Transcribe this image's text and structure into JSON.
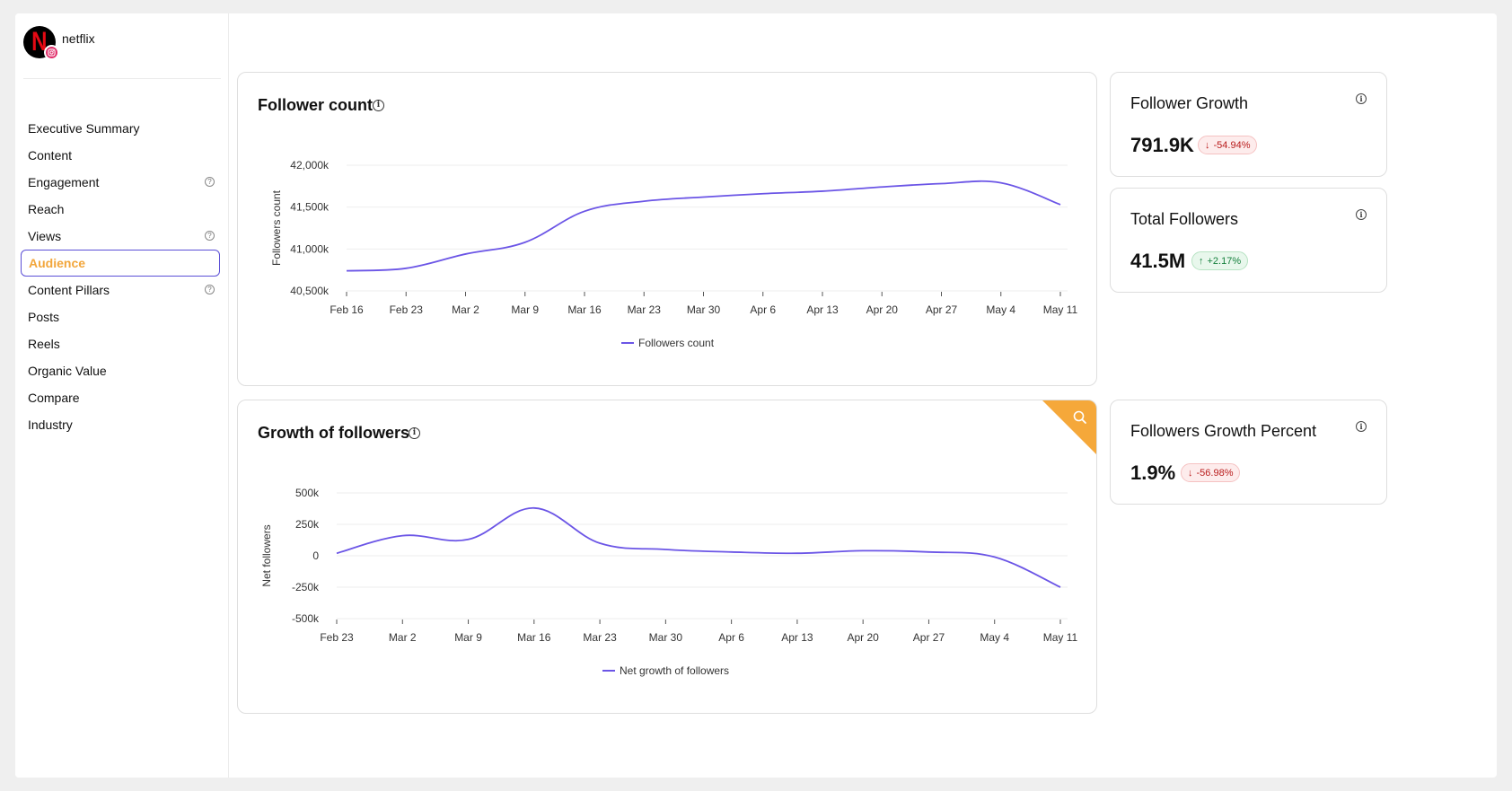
{
  "brand": {
    "name": "netflix"
  },
  "sidebar": {
    "items": [
      {
        "label": "Executive Summary",
        "help": false,
        "active": false
      },
      {
        "label": "Content",
        "help": false,
        "active": false
      },
      {
        "label": "Engagement",
        "help": true,
        "active": false
      },
      {
        "label": "Reach",
        "help": false,
        "active": false
      },
      {
        "label": "Views",
        "help": true,
        "active": false
      },
      {
        "label": "Audience",
        "help": false,
        "active": true
      },
      {
        "label": "Content Pillars",
        "help": true,
        "active": false
      },
      {
        "label": "Posts",
        "help": false,
        "active": false
      },
      {
        "label": "Reels",
        "help": false,
        "active": false
      },
      {
        "label": "Organic Value",
        "help": false,
        "active": false
      },
      {
        "label": "Compare",
        "help": false,
        "active": false
      },
      {
        "label": "Industry",
        "help": false,
        "active": false
      }
    ]
  },
  "kpis": {
    "follower_growth": {
      "title": "Follower Growth",
      "value": "791.9K",
      "change": "-54.94%",
      "direction": "down"
    },
    "total_followers": {
      "title": "Total Followers",
      "value": "41.5M",
      "change": "+2.17%",
      "direction": "up"
    },
    "growth_percent": {
      "title": "Followers Growth Percent",
      "value": "1.9%",
      "change": "-56.98%",
      "direction": "down"
    }
  },
  "colors": {
    "line": "#6b55e6",
    "accent": "#f5a83a",
    "active_border": "#5b4fd6"
  },
  "chart_data": [
    {
      "type": "line",
      "title": "Follower count",
      "ylabel": "Followers count",
      "xlabel": "",
      "ylim": [
        40500,
        42000
      ],
      "yticks": [
        40500,
        41000,
        41500,
        42000
      ],
      "ytick_labels": [
        "40,500k",
        "41,000k",
        "41,500k",
        "42,000k"
      ],
      "categories": [
        "Feb 16",
        "Feb 23",
        "Mar 2",
        "Mar 9",
        "Mar 16",
        "Mar 23",
        "Mar 30",
        "Apr 6",
        "Apr 13",
        "Apr 20",
        "Apr 27",
        "May 4",
        "May 11"
      ],
      "series": [
        {
          "name": "Followers count",
          "values": [
            40740,
            40770,
            40940,
            41080,
            41450,
            41570,
            41620,
            41660,
            41690,
            41740,
            41780,
            41790,
            41530
          ]
        }
      ],
      "legend": "bottom",
      "grid": true
    },
    {
      "type": "line",
      "title": "Growth of followers",
      "ylabel": "Net followers",
      "xlabel": "",
      "ylim": [
        -500,
        500
      ],
      "yticks": [
        -500,
        -250,
        0,
        250,
        500
      ],
      "ytick_labels": [
        "-500k",
        "-250k",
        "0",
        "250k",
        "500k"
      ],
      "categories": [
        "Feb 23",
        "Mar 2",
        "Mar 9",
        "Mar 16",
        "Mar 23",
        "Mar 30",
        "Apr 6",
        "Apr 13",
        "Apr 20",
        "Apr 27",
        "May 4",
        "May 11"
      ],
      "series": [
        {
          "name": "Net growth of followers",
          "values": [
            20,
            160,
            130,
            380,
            100,
            50,
            30,
            20,
            40,
            30,
            -10,
            -250
          ]
        }
      ],
      "legend": "bottom",
      "grid": true
    }
  ]
}
